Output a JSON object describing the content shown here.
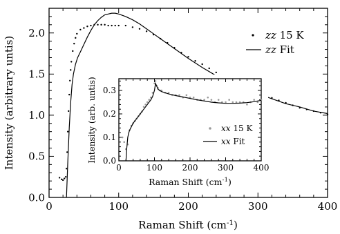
{
  "chart_data": [
    {
      "type": "scatter",
      "xlabel": "Raman Shift (cm-1)",
      "ylabel": "Intensity (arbitrary untis)",
      "xlim": [
        0,
        400
      ],
      "ylim": [
        0,
        2.3
      ],
      "x_ticks": [
        "0",
        "100",
        "200",
        "300",
        "400"
      ],
      "y_ticks": [
        "0.0",
        "0.5",
        "1.0",
        "1.5",
        "2.0"
      ],
      "grid": false,
      "legend_position": "top-right",
      "series": [
        {
          "name": "zz 15 K",
          "style": "points",
          "color": "#000000",
          "x": [
            15,
            18,
            20,
            22,
            24,
            25,
            26,
            27,
            28,
            29,
            30,
            31,
            32,
            34,
            36,
            38,
            40,
            45,
            50,
            55,
            60,
            65,
            70,
            75,
            80,
            85,
            90,
            95,
            100,
            110,
            120,
            130,
            140,
            150,
            160,
            170,
            180,
            190,
            200,
            210,
            220,
            230,
            240,
            250,
            260,
            270,
            280,
            290,
            300,
            310,
            320,
            330,
            340,
            350,
            360,
            370,
            380,
            390,
            400
          ],
          "y": [
            0.24,
            0.22,
            0.21,
            0.23,
            0.25,
            0.35,
            0.55,
            0.8,
            1.05,
            1.25,
            1.42,
            1.55,
            1.65,
            1.78,
            1.87,
            1.94,
            1.99,
            2.04,
            2.06,
            2.08,
            2.09,
            2.1,
            2.1,
            2.1,
            2.1,
            2.09,
            2.09,
            2.09,
            2.09,
            2.09,
            2.07,
            2.05,
            2.02,
            1.98,
            1.93,
            1.88,
            1.82,
            1.76,
            1.71,
            1.66,
            1.62,
            1.57,
            1.52,
            1.47,
            1.43,
            1.39,
            1.35,
            1.31,
            1.28,
            1.24,
            1.21,
            1.18,
            1.15,
            1.12,
            1.09,
            1.07,
            1.05,
            1.03,
            1.01
          ]
        },
        {
          "name": "zz Fit",
          "style": "line",
          "color": "#000000",
          "x": [
            25,
            27,
            29,
            31,
            33,
            35,
            38,
            41,
            45,
            50,
            55,
            60,
            65,
            70,
            75,
            80,
            85,
            90,
            95,
            100,
            110,
            120,
            130,
            140,
            150,
            160,
            170,
            180,
            190,
            200,
            220,
            240,
            260,
            280,
            300,
            320,
            340,
            360,
            380,
            400
          ],
          "y": [
            0.0,
            0.45,
            0.85,
            1.15,
            1.37,
            1.5,
            1.62,
            1.7,
            1.77,
            1.86,
            1.95,
            2.03,
            2.1,
            2.15,
            2.19,
            2.22,
            2.23,
            2.24,
            2.24,
            2.23,
            2.2,
            2.16,
            2.11,
            2.05,
            1.99,
            1.93,
            1.87,
            1.81,
            1.75,
            1.69,
            1.58,
            1.48,
            1.4,
            1.32,
            1.26,
            1.2,
            1.14,
            1.1,
            1.05,
            1.02
          ]
        }
      ]
    },
    {
      "type": "scatter",
      "xlabel": "Raman Shift (cm-1)",
      "ylabel": "Intensity (arb. untis)",
      "xlim": [
        0,
        400
      ],
      "ylim": [
        0,
        0.35
      ],
      "x_ticks": [
        "0",
        "100",
        "200",
        "300",
        "400"
      ],
      "y_ticks": [
        "0.0",
        "0.1",
        "0.2",
        "0.3"
      ],
      "grid": false,
      "legend_position": "bottom-right",
      "series": [
        {
          "name": "xx 15 K",
          "style": "points",
          "color": "#9a9a9a",
          "x": [
            10,
            15,
            20,
            25,
            30,
            35,
            40,
            45,
            50,
            55,
            60,
            65,
            70,
            75,
            80,
            85,
            90,
            95,
            100,
            103,
            106,
            110,
            115,
            120,
            130,
            140,
            150,
            160,
            170,
            180,
            190,
            200,
            210,
            220,
            230,
            240,
            250,
            260,
            270,
            280,
            290,
            300,
            310,
            320,
            330,
            340,
            350,
            360,
            370,
            380,
            390,
            400
          ],
          "y": [
            0.1,
            0.08,
            0.05,
            0.07,
            0.13,
            0.15,
            0.16,
            0.17,
            0.18,
            0.19,
            0.2,
            0.21,
            0.23,
            0.24,
            0.25,
            0.26,
            0.27,
            0.29,
            0.33,
            0.34,
            0.32,
            0.31,
            0.3,
            0.3,
            0.29,
            0.29,
            0.28,
            0.28,
            0.28,
            0.27,
            0.28,
            0.27,
            0.27,
            0.26,
            0.26,
            0.26,
            0.27,
            0.26,
            0.25,
            0.26,
            0.25,
            0.25,
            0.26,
            0.25,
            0.25,
            0.25,
            0.25,
            0.24,
            0.25,
            0.26,
            0.25,
            0.26
          ]
        },
        {
          "name": "xx Fit",
          "style": "line",
          "color": "#000000",
          "x": [
            20,
            22,
            25,
            28,
            30,
            35,
            40,
            50,
            60,
            70,
            80,
            90,
            95,
            100,
            103,
            106,
            110,
            120,
            140,
            160,
            180,
            200,
            220,
            240,
            260,
            280,
            300,
            320,
            340,
            360,
            380,
            400
          ],
          "y": [
            0.0,
            0.05,
            0.1,
            0.12,
            0.13,
            0.145,
            0.16,
            0.18,
            0.2,
            0.22,
            0.24,
            0.26,
            0.275,
            0.3,
            0.33,
            0.32,
            0.305,
            0.295,
            0.285,
            0.278,
            0.272,
            0.266,
            0.26,
            0.255,
            0.25,
            0.247,
            0.245,
            0.245,
            0.246,
            0.248,
            0.252,
            0.258
          ]
        }
      ]
    }
  ]
}
